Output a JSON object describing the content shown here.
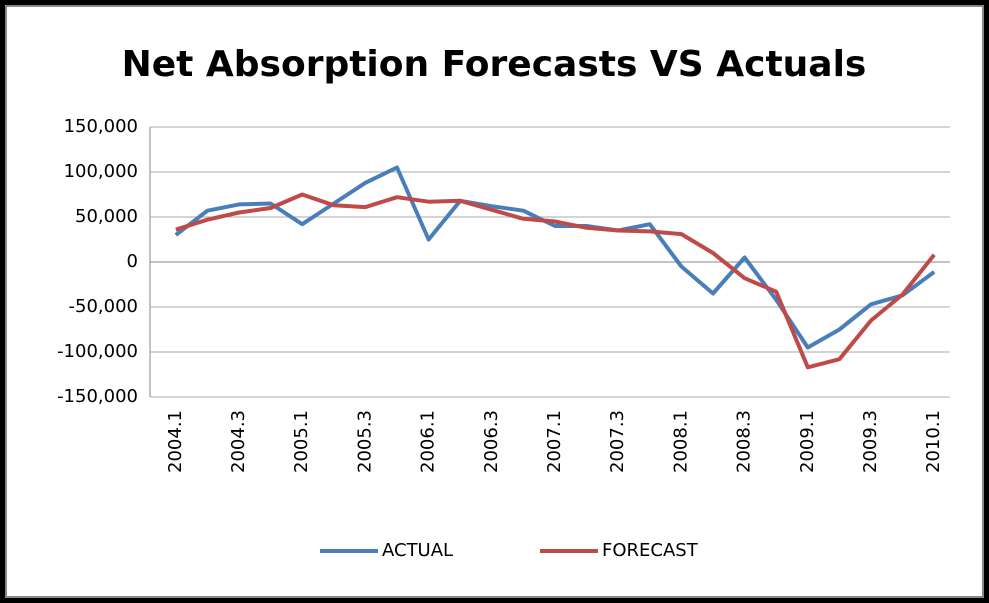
{
  "chart_data": {
    "type": "line",
    "title": "Net Absorption Forecasts VS Actuals",
    "categories": [
      "2004.1",
      null,
      "2004.3",
      null,
      "2005.1",
      null,
      "2005.3",
      null,
      "2006.1",
      null,
      "2006.3",
      null,
      "2007.1",
      null,
      "2007.3",
      null,
      "2008.1",
      null,
      "2008.3",
      null,
      "2009.1",
      null,
      "2009.3",
      null,
      "2010.1"
    ],
    "series": [
      {
        "name": "ACTUAL",
        "color": "#4a7ebb",
        "values": [
          30000,
          57000,
          64000,
          65000,
          42000,
          65000,
          88000,
          105000,
          25000,
          68000,
          62000,
          57000,
          40000,
          40000,
          35000,
          42000,
          -5000,
          -35000,
          5000,
          -42000,
          -95000,
          -75000,
          -47000,
          -37000,
          -11000
        ]
      },
      {
        "name": "FORECAST",
        "color": "#be4b48",
        "values": [
          36000,
          47000,
          55000,
          60000,
          75000,
          63000,
          61000,
          72000,
          67000,
          68000,
          58000,
          48000,
          45000,
          38000,
          35000,
          34000,
          31000,
          10000,
          -18000,
          -33000,
          -117000,
          -108000,
          -65000,
          -36000,
          8000
        ]
      }
    ],
    "ylim": [
      -150000,
      150000
    ],
    "yticks": [
      {
        "value": -150000,
        "label": "-150,000"
      },
      {
        "value": -100000,
        "label": "-100,000"
      },
      {
        "value": -50000,
        "label": "-50,000"
      },
      0,
      {
        "value": 50000,
        "label": "50,000"
      },
      {
        "value": 100000,
        "label": "100,000"
      },
      {
        "value": 150000,
        "label": "150,000"
      }
    ],
    "grid": true,
    "legend": "bottom"
  }
}
